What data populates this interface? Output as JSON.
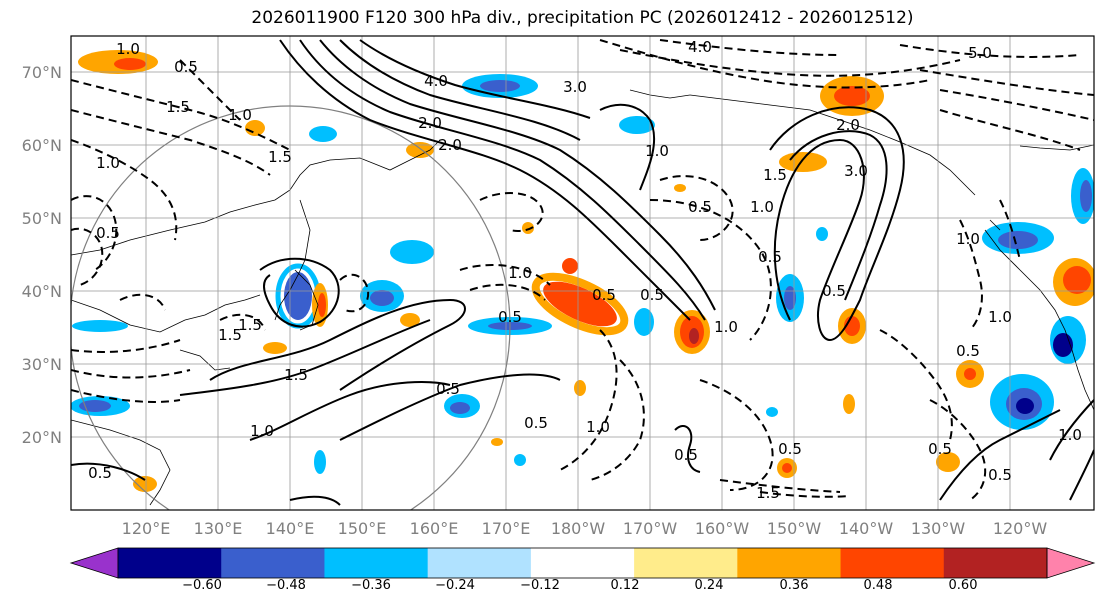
{
  "title": "2026011900 F120 300 hPa div., precipitation PC (2026012412 - 2026012512)",
  "map": {
    "lat_labels": [
      "70°N",
      "60°N",
      "50°N",
      "40°N",
      "30°N",
      "20°N"
    ],
    "lon_labels": [
      "120°E",
      "130°E",
      "140°E",
      "150°E",
      "160°E",
      "170°E",
      "180°W",
      "170°W",
      "160°W",
      "150°W",
      "140°W",
      "130°W",
      "120°W"
    ],
    "contour_labels": [
      "1.0",
      "0.5",
      "1.0",
      "1.5",
      "2.0",
      "3.0",
      "4.0",
      "2.0",
      "1.5",
      "1.0",
      "0.5",
      "0.5",
      "1.0",
      "1.5",
      "0.5",
      "0.5",
      "1.0",
      "0.5",
      "1.0",
      "0.5",
      "0.5",
      "1.5",
      "2.0",
      "3.0",
      "1.0",
      "0.5",
      "0.5",
      "1.0",
      "4.0",
      "5.0",
      "1.0",
      "0.5",
      "1.0",
      "0.5",
      "1.5",
      "1.0",
      "0.5",
      "0.5",
      "1.5",
      "1.0",
      "0.5",
      "1.5",
      "0.5"
    ]
  },
  "colorbar": {
    "tick_labels": [
      "−0.60",
      "−0.48",
      "−0.36",
      "−0.24",
      "−0.12",
      "0.12",
      "0.24",
      "0.36",
      "0.48",
      "0.60"
    ],
    "colors": [
      "#9932cc",
      "#00008b",
      "#3a5fcd",
      "#00bfff",
      "#b0e2ff",
      "#ffffff",
      "#ffec8b",
      "#ffa500",
      "#ff4500",
      "#b22222",
      "#ff82ab"
    ]
  }
}
